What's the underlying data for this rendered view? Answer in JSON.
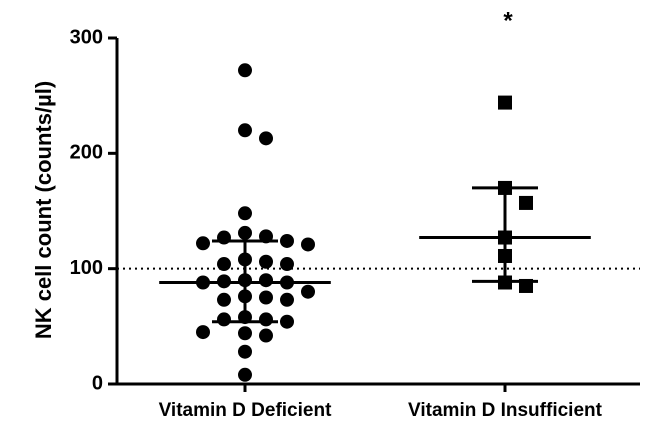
{
  "chart_data": {
    "type": "strip",
    "y_label": "NK cell count (counts/µl)",
    "categories": [
      "Vitamin D Deficient",
      "Vitamin D Insufficient"
    ],
    "series": [
      {
        "marker": "circle",
        "color": "#000000",
        "values": [
          272,
          220,
          213,
          148,
          131,
          128,
          127,
          124,
          122,
          121,
          108,
          106,
          104,
          104,
          90,
          90,
          89,
          88,
          88,
          80,
          76,
          75,
          73,
          73,
          58,
          56,
          56,
          54,
          45,
          44,
          42,
          28,
          8
        ],
        "median": 88,
        "q1": 54,
        "q3": 124
      },
      {
        "marker": "square",
        "color": "#000000",
        "values": [
          244,
          170,
          157,
          127,
          111,
          88,
          85
        ],
        "median": 127,
        "q1": 89,
        "q3": 170
      }
    ],
    "reference_line": 100,
    "annotations": [
      {
        "text": "*",
        "category": 1
      }
    ],
    "ylim": [
      0,
      300
    ],
    "yticks": [
      0,
      100,
      200,
      300
    ],
    "grid": false
  }
}
